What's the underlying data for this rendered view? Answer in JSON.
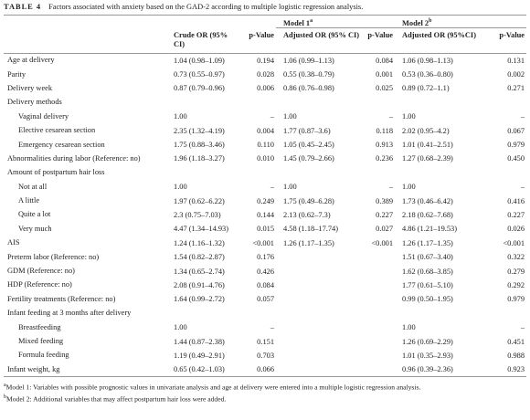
{
  "header": {
    "table_label": "TABLE 4",
    "caption": "Factors associated with anxiety based on the GAD-2 according to multiple logistic regression analysis."
  },
  "table": {
    "groups": [
      {
        "text": "Model 1",
        "note": "a"
      },
      {
        "text": "Model 2",
        "note": "b"
      }
    ],
    "columns": [
      "Crude OR (95% CI)",
      "p-Value",
      "Adjusted OR (95% CI)",
      "p-Value",
      "Adjusted OR (95%CI)",
      "p-Value"
    ],
    "rows": [
      {
        "label": "Age at delivery",
        "values": [
          "1.04 (0.98–1.09)",
          "0.194",
          "1.06 (0.99–1.13)",
          "0.084",
          "1.06 (0.98–1.13)",
          "0.131"
        ]
      },
      {
        "label": "Parity",
        "values": [
          "0.73 (0.55–0.97)",
          "0.028",
          "0.55 (0.38–0.79)",
          "0.001",
          "0.53 (0.36–0.80)",
          "0.002"
        ]
      },
      {
        "label": "Delivery week",
        "values": [
          "0.87 (0.79–0.96)",
          "0.006",
          "0.86 (0.76–0.98)",
          "0.025",
          "0.89 (0.72–1.1)",
          "0.271"
        ]
      },
      {
        "label": "Delivery methods",
        "items": [
          {
            "label": "Vaginal delivery",
            "values": [
              "1.00",
              "–",
              "1.00",
              "–",
              "1.00",
              "–"
            ]
          },
          {
            "label": "Elective cesarean section",
            "values": [
              "2.35 (1.32–4.19)",
              "0.004",
              "1.77 (0.87–3.6)",
              "0.118",
              "2.02 (0.95–4.2)",
              "0.067"
            ]
          },
          {
            "label": "Emergency cesarean section",
            "values": [
              "1.75 (0.88–3.46)",
              "0.110",
              "1.05 (0.45–2.45)",
              "0.913",
              "1.01 (0.41–2.51)",
              "0.979"
            ]
          }
        ]
      },
      {
        "label": "Abnormalities during labor (Reference: no)",
        "values": [
          "1.96 (1.18–3.27)",
          "0.010",
          "1.45 (0.79–2.66)",
          "0.236",
          "1.27 (0.68–2.39)",
          "0.450"
        ]
      },
      {
        "label": "Amount of postpartum hair loss",
        "items": [
          {
            "label": "Not at all",
            "values": [
              "1.00",
              "–",
              "1.00",
              "–",
              "1.00",
              "–"
            ]
          },
          {
            "label": "A little",
            "values": [
              "1.97 (0.62–6.22)",
              "0.249",
              "1.75 (0.49–6.28)",
              "0.389",
              "1.73 (0.46–6.42)",
              "0.416"
            ]
          },
          {
            "label": "Quite a lot",
            "values": [
              "2.3 (0.75–7.03)",
              "0.144",
              "2.13 (0.62–7.3)",
              "0.227",
              "2.18 (0.62–7.68)",
              "0.227"
            ]
          },
          {
            "label": "Very much",
            "values": [
              "4.47 (1.34–14.93)",
              "0.015",
              "4.58 (1.18–17.74)",
              "0.027",
              "4.86 (1.21–19.53)",
              "0.026"
            ]
          }
        ]
      },
      {
        "label": "AIS",
        "values": [
          "1.24 (1.16–1.32)",
          "<0.001",
          "1.26 (1.17–1.35)",
          "<0.001",
          "1.26 (1.17–1.35)",
          "<0.001"
        ]
      },
      {
        "label": "Preterm labor (Reference: no)",
        "values": [
          "1.54 (0.82–2.87)",
          "0.176",
          null,
          null,
          "1.51 (0.67–3.40)",
          "0.322"
        ]
      },
      {
        "label": "GDM (Reference: no)",
        "values": [
          "1.34 (0.65–2.74)",
          "0.426",
          null,
          null,
          "1.62 (0.68–3.85)",
          "0.279"
        ]
      },
      {
        "label": "HDP (Reference: no)",
        "values": [
          "2.08 (0.91–4.76)",
          "0.084",
          null,
          null,
          "1.77 (0.61–5.10)",
          "0.292"
        ]
      },
      {
        "label": "Fertility treatments (Reference: no)",
        "values": [
          "1.64 (0.99–2.72)",
          "0.057",
          null,
          null,
          "0.99 (0.50–1.95)",
          "0.979"
        ]
      },
      {
        "label": "Infant feeding at 3 months after delivery",
        "items": [
          {
            "label": "Breastfeeding",
            "values": [
              "1.00",
              "–",
              null,
              null,
              "1.00",
              "–"
            ]
          },
          {
            "label": "Mixed feeding",
            "values": [
              "1.44 (0.87–2.38)",
              "0.151",
              null,
              null,
              "1.26 (0.69–2.29)",
              "0.451"
            ]
          },
          {
            "label": "Formula feeding",
            "values": [
              "1.19 (0.49–2.91)",
              "0.703",
              null,
              null,
              "1.01 (0.35–2.93)",
              "0.988"
            ]
          }
        ]
      },
      {
        "label": "Infant weight, kg",
        "values": [
          "0.65 (0.42–1.03)",
          "0.066",
          null,
          null,
          "0.96 (0.39–2.36)",
          "0.923"
        ]
      }
    ]
  },
  "footnotes": [
    {
      "mark": "a",
      "text": "Model 1: Variables with possible prognostic values in univariate analysis and age at delivery were entered into a multiple logistic regression analysis."
    },
    {
      "mark": "b",
      "text": "Model 2: Additional variables that may affect postpartum hair loss were added."
    }
  ]
}
